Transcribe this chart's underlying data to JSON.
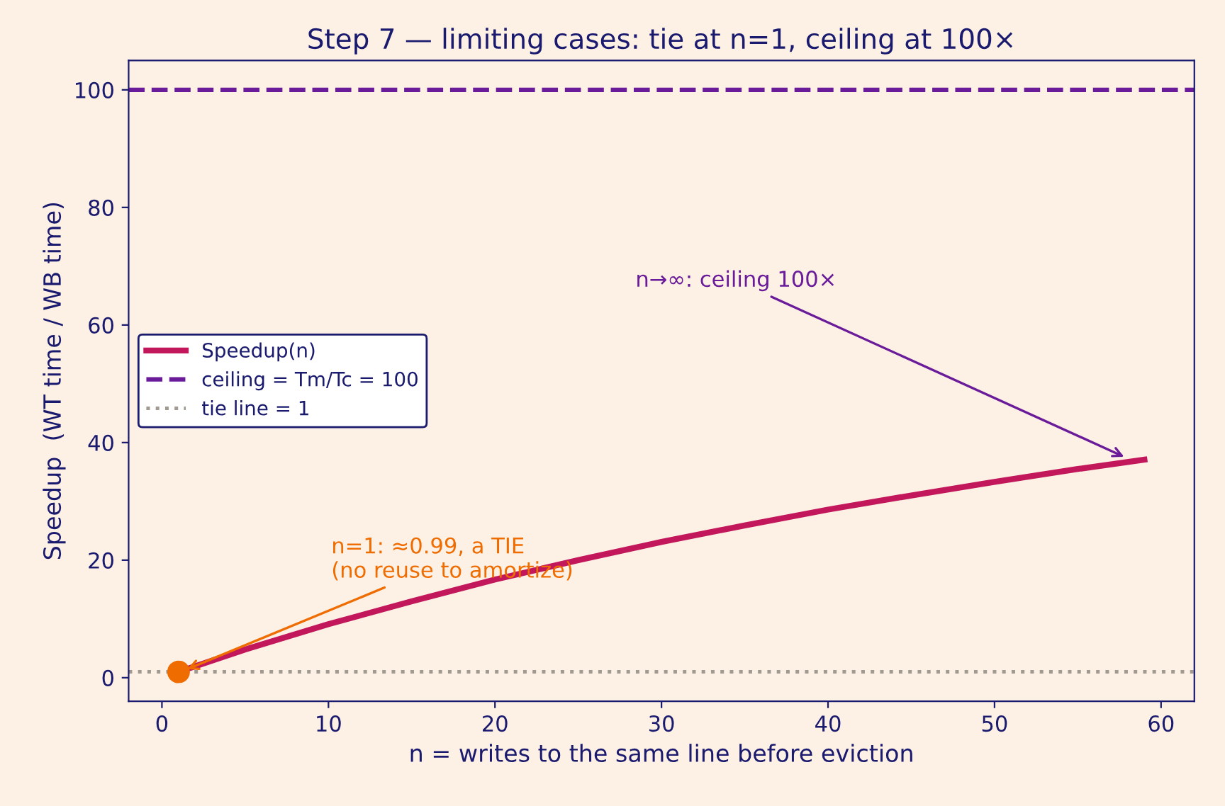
{
  "chart_data": {
    "type": "line",
    "title": "Step 7 — limiting cases: tie at n=1, ceiling at 100×",
    "xlabel": "n = writes to the same line before eviction",
    "ylabel": "Speedup  (WT time / WB time)",
    "series": [
      {
        "name": "Speedup(n)",
        "color": "#c2185b",
        "x": [
          1,
          5,
          10,
          15,
          20,
          25,
          30,
          35,
          40,
          45,
          50,
          55,
          59
        ],
        "values": [
          0.99,
          4.8,
          9.1,
          13.0,
          16.7,
          20.0,
          23.1,
          25.9,
          28.6,
          31.0,
          33.3,
          35.5,
          37.1
        ]
      },
      {
        "type": "scatter",
        "color": "#ef6c00",
        "x": [
          1
        ],
        "values": [
          0.99
        ],
        "marker": "circle"
      }
    ],
    "ref_lines": [
      {
        "axis": "y",
        "value": 100,
        "label": "ceiling = Tm/Tc = 100",
        "color": "#6a1b9a",
        "line_style": "dashed"
      },
      {
        "axis": "y",
        "value": 1,
        "label": "tie line = 1",
        "color": "#a09a90",
        "line_style": "dotted"
      }
    ],
    "annotations": [
      {
        "text": "n→∞: ceiling 100×",
        "x": 58,
        "y": 37.3
      },
      {
        "text": "n=1: ≈0.99, a TIE\n(no reuse to amortize)",
        "x": 1.3,
        "y": 1.2
      }
    ],
    "xlim": [
      -2,
      62
    ],
    "ylim": [
      -4,
      105
    ],
    "xticks": [
      0,
      10,
      20,
      30,
      40,
      50,
      60
    ],
    "yticks": [
      0,
      20,
      40,
      60,
      80,
      100
    ],
    "grid": false,
    "legend": "center left",
    "line_style": "solid",
    "marker": "none"
  }
}
